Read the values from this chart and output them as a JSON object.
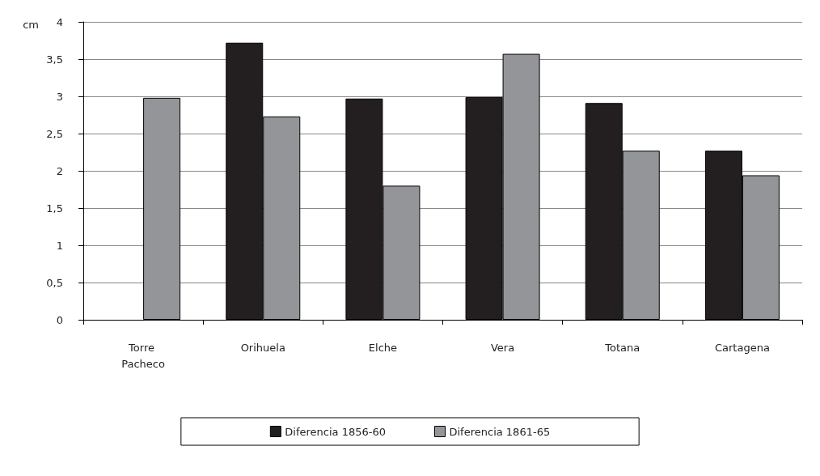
{
  "chart_data": {
    "type": "bar",
    "ylabel": "cm",
    "categories": [
      "Torre Pacheco",
      "Orihuela",
      "Elche",
      "Vera",
      "Totana",
      "Cartagena"
    ],
    "series": [
      {
        "name": "Diferencia 1856-60",
        "color": "#231f20",
        "values": [
          null,
          3.72,
          2.97,
          2.99,
          2.91,
          2.27
        ]
      },
      {
        "name": "Diferencia 1861-65",
        "color": "#939598",
        "values": [
          2.98,
          2.73,
          1.8,
          3.57,
          2.27,
          1.94
        ]
      }
    ],
    "ylim": [
      0,
      4
    ],
    "yticks": [
      0,
      {
        "value": 0.5,
        "label": "0,5"
      },
      1,
      {
        "value": 1.5,
        "label": "1,5"
      },
      2,
      {
        "value": 2.5,
        "label": "2,5"
      },
      3,
      {
        "value": 3.5,
        "label": "3,5"
      },
      4
    ],
    "grid": "y",
    "legend": "bottom"
  }
}
